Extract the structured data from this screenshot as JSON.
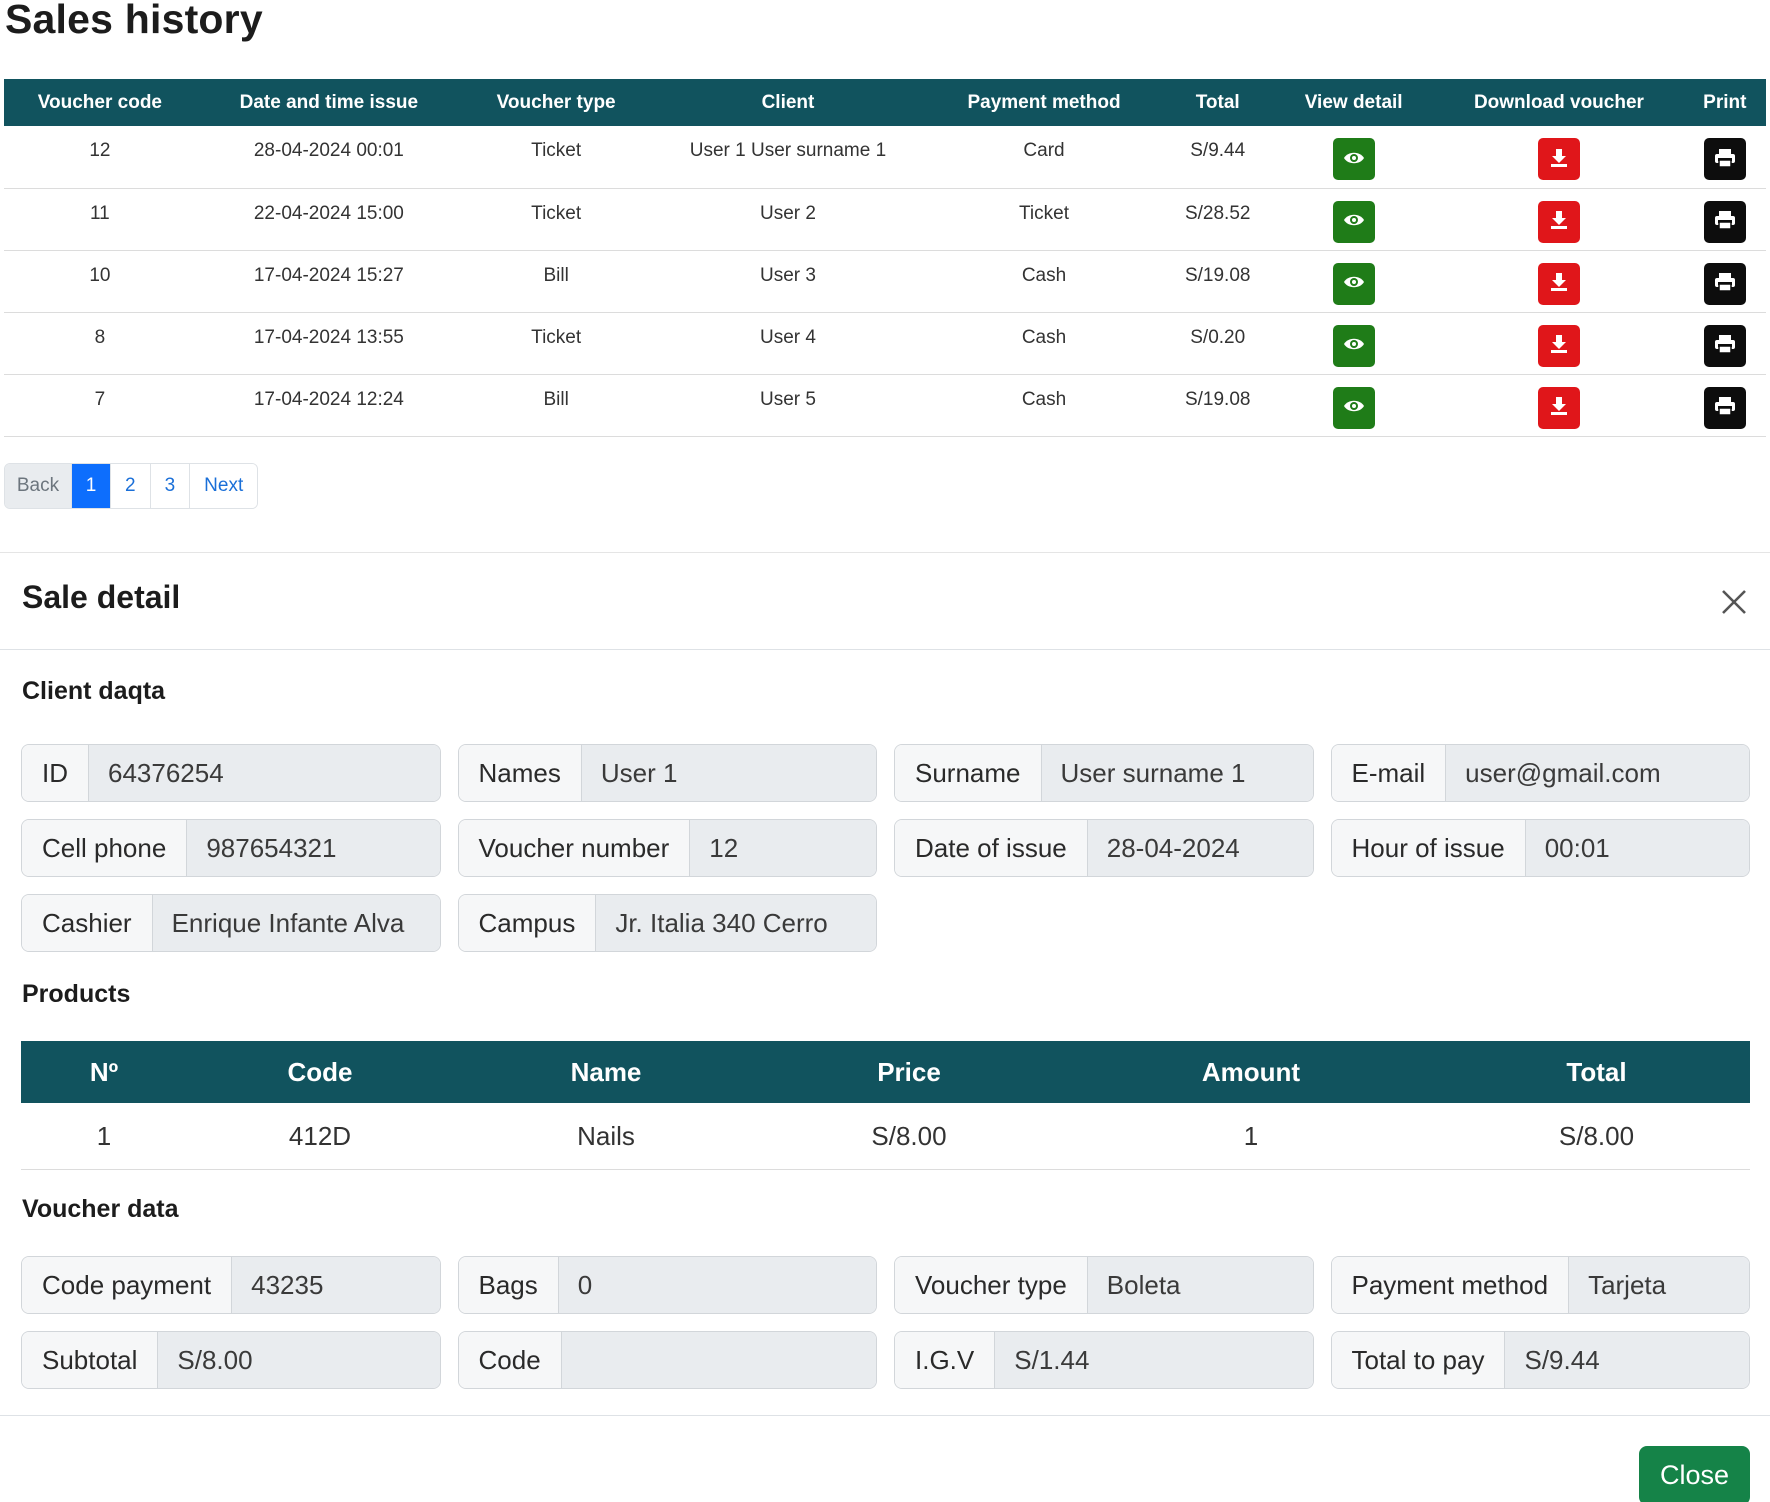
{
  "sales_history": {
    "title": "Sales history",
    "columns": [
      "Voucher code",
      "Date and time issue",
      "Voucher type",
      "Client",
      "Payment method",
      "Total",
      "View detail",
      "Download voucher",
      "Print"
    ],
    "rows": [
      {
        "code": "12",
        "datetime": "28-04-2024 00:01",
        "voucher_type": "Ticket",
        "client": "User 1 User surname 1",
        "payment_method": "Card",
        "total": "S/9.44"
      },
      {
        "code": "11",
        "datetime": "22-04-2024 15:00",
        "voucher_type": "Ticket",
        "client": "User 2",
        "payment_method": "Ticket",
        "total": "S/28.52"
      },
      {
        "code": "10",
        "datetime": "17-04-2024 15:27",
        "voucher_type": "Bill",
        "client": "User 3",
        "payment_method": "Cash",
        "total": "S/19.08"
      },
      {
        "code": "8",
        "datetime": "17-04-2024 13:55",
        "voucher_type": "Ticket",
        "client": "User 4",
        "payment_method": "Cash",
        "total": "S/0.20"
      },
      {
        "code": "7",
        "datetime": "17-04-2024 12:24",
        "voucher_type": "Bill",
        "client": "User 5",
        "payment_method": "Cash",
        "total": "S/19.08"
      }
    ],
    "row_icons": {
      "view": "eye-icon",
      "download": "download-icon",
      "print": "print-icon"
    },
    "pagination": {
      "back": "Back",
      "pages": [
        "1",
        "2",
        "3"
      ],
      "active_page": "1",
      "next": "Next"
    }
  },
  "sale_detail": {
    "title": "Sale detail",
    "client_section_title": "Client daqta",
    "client_fields": [
      {
        "label": "ID",
        "value": "64376254"
      },
      {
        "label": "Names",
        "value": "User 1"
      },
      {
        "label": "Surname",
        "value": "User surname 1"
      },
      {
        "label": "E-mail",
        "value": "user@gmail.com"
      },
      {
        "label": "Cell phone",
        "value": "987654321"
      },
      {
        "label": "Voucher number",
        "value": "12"
      },
      {
        "label": "Date of issue",
        "value": "28-04-2024"
      },
      {
        "label": "Hour of issue",
        "value": "00:01"
      },
      {
        "label": "Cashier",
        "value": "Enrique Infante Alva"
      },
      {
        "label": "Campus",
        "value": "Jr. Italia 340 Cerro"
      }
    ],
    "products_section_title": "Products",
    "products_columns": [
      "Nº",
      "Code",
      "Name",
      "Price",
      "Amount",
      "Total"
    ],
    "products": [
      {
        "n": "1",
        "code": "412D",
        "name": "Nails",
        "price": "S/8.00",
        "amount": "1",
        "total": "S/8.00"
      }
    ],
    "voucher_section_title": "Voucher data",
    "voucher_fields": [
      {
        "label": "Code payment",
        "value": "43235"
      },
      {
        "label": "Bags",
        "value": "0"
      },
      {
        "label": "Voucher type",
        "value": "Boleta"
      },
      {
        "label": "Payment method",
        "value": "Tarjeta"
      },
      {
        "label": "Subtotal",
        "value": "S/8.00"
      },
      {
        "label": "Code",
        "value": ""
      },
      {
        "label": "I.G.V",
        "value": "S/1.44"
      },
      {
        "label": "Total to pay",
        "value": "S/9.44"
      }
    ],
    "close_button": "Close",
    "close_icon": "close-icon"
  },
  "colors": {
    "table_header": "#11535e",
    "view_button": "#1f7c18",
    "download_button": "#e0161a",
    "print_button": "#0d0d0d",
    "close_button": "#158348",
    "active_page": "#0d6efd"
  }
}
